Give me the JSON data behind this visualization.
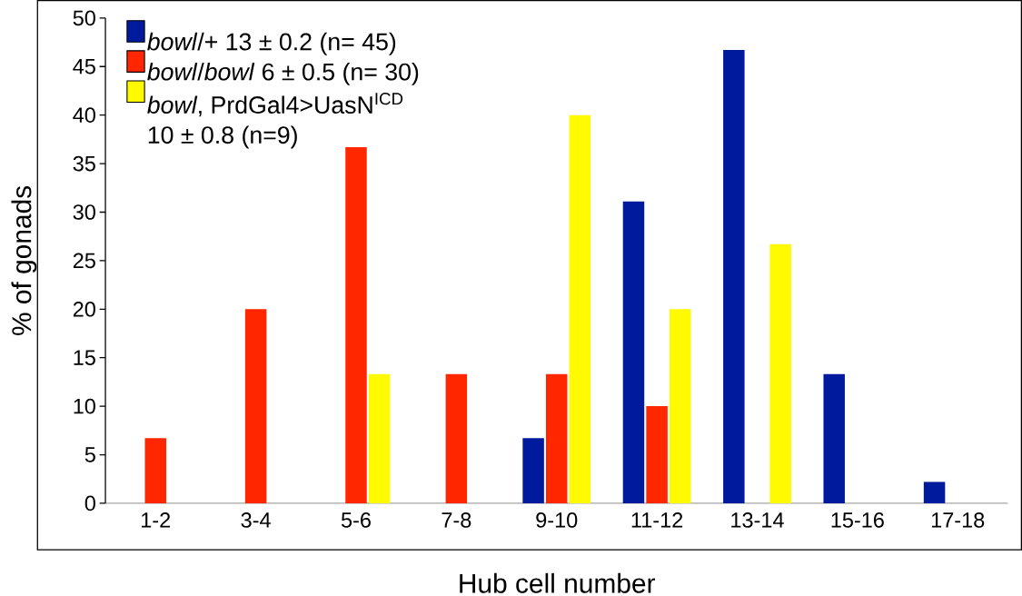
{
  "chart_data": {
    "type": "bar",
    "xlabel": "Hub cell number",
    "ylabel": "% of gonads",
    "categories": [
      "1-2",
      "3-4",
      "5-6",
      "7-8",
      "9-10",
      "11-12",
      "13-14",
      "15-16",
      "17-18"
    ],
    "series": [
      {
        "name": "*bowl*/+ 13 ± 0.2 (n= 45)",
        "color": "#001a9e",
        "values": [
          null,
          null,
          null,
          null,
          6.7,
          31.1,
          46.7,
          13.3,
          2.2
        ]
      },
      {
        "name": "*bowl*/*bowl* 6 ± 0.5 (n= 30)",
        "color": "#ff2600",
        "values": [
          6.7,
          20,
          36.7,
          13.3,
          13.3,
          10,
          null,
          null,
          null
        ]
      },
      {
        "name": "*bowl*, PrdGal4>UasN$^{ICD}$ 10 ± 0.8 (n=9)",
        "color": "#fffa00",
        "values": [
          null,
          null,
          13.3,
          null,
          40,
          20,
          26.7,
          null,
          null
        ]
      }
    ],
    "ylim": [
      0,
      50
    ],
    "yticks": [
      0,
      5,
      10,
      15,
      20,
      25,
      30,
      35,
      40,
      45,
      50
    ],
    "legend": "top left"
  }
}
